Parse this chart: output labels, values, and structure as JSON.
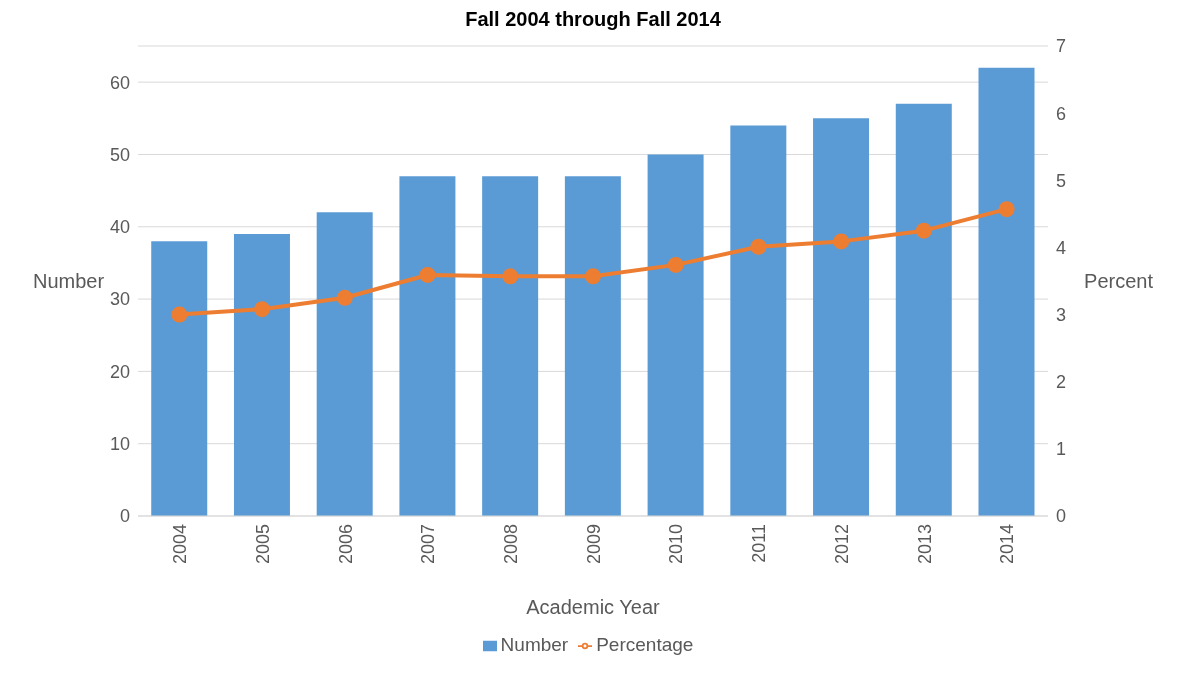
{
  "chart_data": {
    "type": "bar",
    "title": "Fall 2004 through Fall 2014",
    "xlabel": "Academic Year",
    "ylabel": "Number",
    "y2label": "Percent",
    "categories": [
      "2004",
      "2005",
      "2006",
      "2007",
      "2008",
      "2009",
      "2010",
      "2011",
      "2012",
      "2013",
      "2014"
    ],
    "series": [
      {
        "name": "Number",
        "color": "#5b9bd5",
        "values": [
          38,
          39,
          42,
          47,
          47,
          47,
          50,
          54,
          55,
          57,
          62
        ]
      },
      {
        "name": "Percentage",
        "type": "line",
        "axis": "y2",
        "color": "#ed7d31",
        "marker": "circle",
        "values": [
          3.0,
          3.08,
          3.25,
          3.59,
          3.57,
          3.57,
          3.74,
          4.01,
          4.09,
          4.25,
          4.57
        ]
      }
    ],
    "ylim": [
      0,
      65
    ],
    "yticks": [
      0,
      10,
      20,
      30,
      40,
      50,
      60
    ],
    "y2lim": [
      0,
      7
    ],
    "y2ticks": [
      0,
      1,
      2,
      3,
      4,
      5,
      6,
      7
    ],
    "grid": "y",
    "legend": "bottom"
  }
}
